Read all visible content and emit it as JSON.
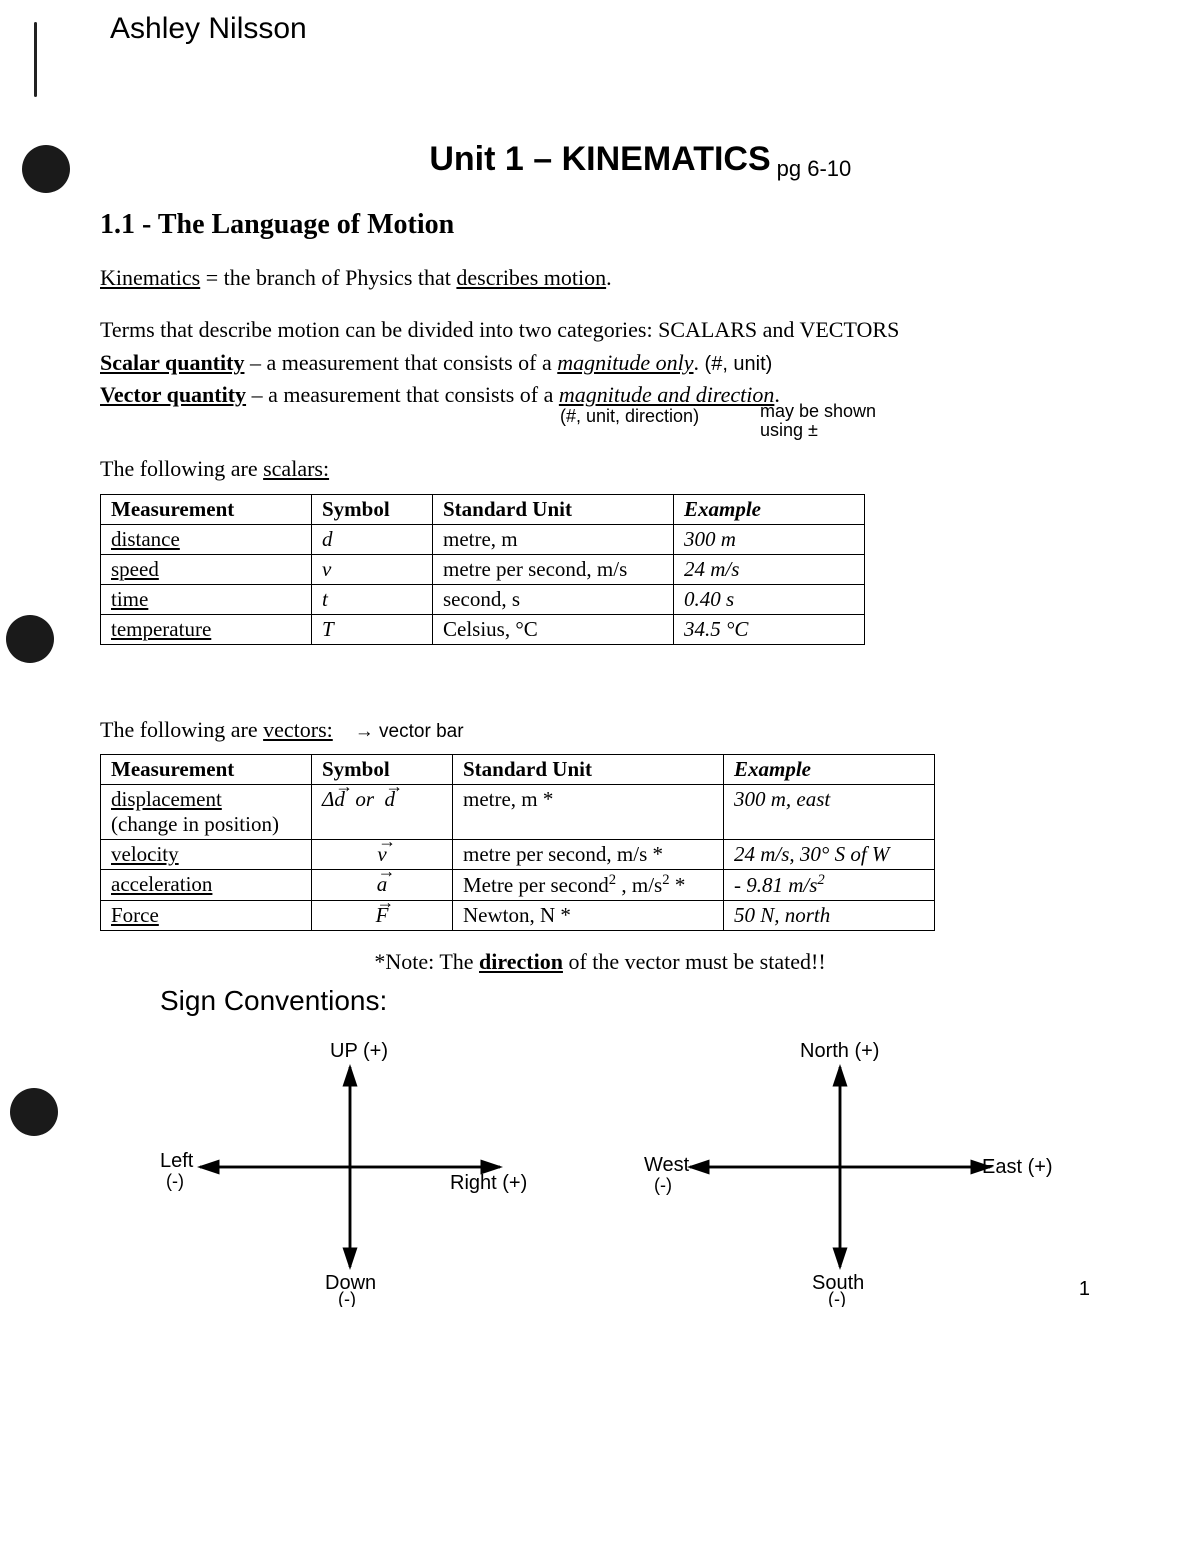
{
  "student_name": "Ashley Nilsson",
  "title": "Unit 1 – KINEMATICS",
  "title_annotation": "pg 6-10",
  "section": "1.1 -  The Language of Motion",
  "def_line": {
    "term": "Kinematics",
    "eq": " = the branch of Physics that ",
    "tail": "describes motion",
    "period": "."
  },
  "intro_line": "Terms that describe motion can be divided into two categories:  SCALARS and VECTORS",
  "scalar_def": {
    "lead": "Scalar quantity",
    "mid": " – a measurement that consists of a ",
    "em": "magnitude only",
    "annot": "(#, unit)"
  },
  "vector_def": {
    "lead": "Vector quantity",
    "mid": " – a measurement that consists of a ",
    "em": "magnitude and direction",
    "annot1": "(#, unit, direction)",
    "annot2": "may be shown using ±"
  },
  "scalars_intro_a": "The following are ",
  "scalars_intro_b": "scalars:",
  "vectors_intro_a": "The following are ",
  "vectors_intro_b": "vectors:",
  "vectors_intro_annot": "→ vector bar",
  "table_headers": [
    "Measurement",
    "Symbol",
    "Standard Unit",
    "Example"
  ],
  "scalars": [
    {
      "m": "distance",
      "s": "d",
      "u": "metre, m",
      "e": "300 m"
    },
    {
      "m": "speed",
      "s": "ν",
      "u": "metre per second, m/s",
      "e": "24 m/s"
    },
    {
      "m": "time",
      "s": "t",
      "u": "second, s",
      "e": "0.40 s"
    },
    {
      "m": "temperature",
      "s": "T",
      "u": "Celsius, °C",
      "e": "34.5 °C"
    }
  ],
  "vectors": [
    {
      "m": "displacement",
      "m2": "(change in position)",
      "s_html": "Δ<span class='vector-arrow'>d</span>&nbsp;&nbsp;or&nbsp;&nbsp;<span class='vector-arrow'>d</span>",
      "u": "metre, m *",
      "e": "300 m, east"
    },
    {
      "m": "velocity",
      "s_html": "<span class='vector-arrow'>v</span>",
      "u": "metre per second, m/s *",
      "e": "24 m/s, 30° S of W"
    },
    {
      "m": "acceleration",
      "s_html": "<span class='vector-arrow'>a</span>",
      "u": "Metre per second<sup>2</sup> , m/s<sup>2</sup> *",
      "e": "- 9.81 m/s<sup>2</sup>"
    },
    {
      "m": "Force",
      "s_html": "<span class='vector-arrow'>F</span>",
      "u": "Newton, N *",
      "e": "50 N, north"
    }
  ],
  "note_a": "*Note:  The ",
  "note_b": "direction",
  "note_c": " of the vector must be stated!!",
  "sign_title": "Sign Conventions:",
  "axes1": {
    "up": "UP (+)",
    "down": "Down",
    "down2": "(-)",
    "left": "Left",
    "left2": "(-)",
    "right": "Right (+)"
  },
  "axes2": {
    "up": "North (+)",
    "down": "South",
    "down2": "(-)",
    "left": "West",
    "left2": "(-)",
    "right": "East (+)"
  },
  "page_number": "1"
}
